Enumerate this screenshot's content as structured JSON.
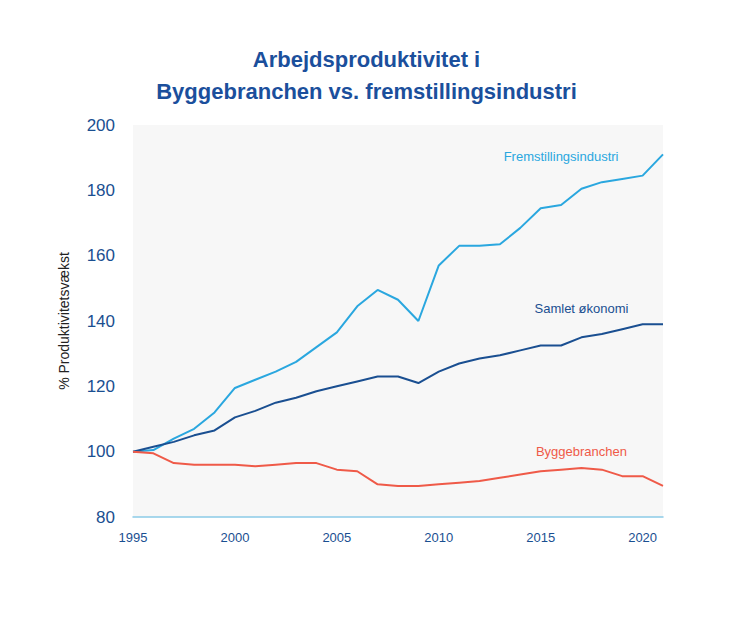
{
  "chart_data": {
    "type": "line",
    "title": "Arbejdsproduktivitet i\nByggebranchen vs. fremstillingsindustri",
    "ylabel": "% Produktivitetsvækst",
    "x": [
      1995,
      1996,
      1997,
      1998,
      1999,
      2000,
      2001,
      2002,
      2003,
      2004,
      2005,
      2006,
      2007,
      2008,
      2009,
      2010,
      2011,
      2012,
      2013,
      2014,
      2015,
      2016,
      2017,
      2018,
      2019,
      2020,
      2021
    ],
    "series": [
      {
        "name": "Fremstillingsindustri",
        "color": "#2aa7df",
        "values": [
          100,
          100.5,
          104,
          107,
          112,
          119.5,
          122,
          124.5,
          127.5,
          132,
          136.5,
          144.5,
          149.5,
          146.5,
          140,
          157,
          163,
          163,
          163.5,
          168.5,
          174.5,
          175.5,
          180.5,
          182.5,
          183.5,
          184.5,
          191
        ]
      },
      {
        "name": "Samlet økonomi",
        "color": "#1a4f91",
        "values": [
          100,
          101.5,
          103,
          105,
          106.5,
          110.5,
          112.5,
          115,
          116.5,
          118.5,
          120,
          121.5,
          123,
          123,
          121,
          124.5,
          127,
          128.5,
          129.5,
          131,
          132.5,
          132.5,
          135,
          136,
          137.5,
          139,
          139
        ]
      },
      {
        "name": "Byggebranchen",
        "color": "#ef5a48",
        "values": [
          100,
          99.5,
          96.5,
          96,
          96,
          96,
          95.5,
          96,
          96.5,
          96.5,
          94.5,
          94,
          90,
          89.5,
          89.5,
          90,
          90.5,
          91,
          92,
          93,
          94,
          94.5,
          95,
          94.5,
          92.5,
          92.5,
          89.5
        ]
      }
    ],
    "xlim": [
      1995,
      2021
    ],
    "xticks": [
      1995,
      2000,
      2005,
      2010,
      2015,
      2020
    ],
    "ylim": [
      80,
      200
    ],
    "yticks": [
      80,
      100,
      120,
      140,
      160,
      180,
      200
    ],
    "grid": false
  }
}
